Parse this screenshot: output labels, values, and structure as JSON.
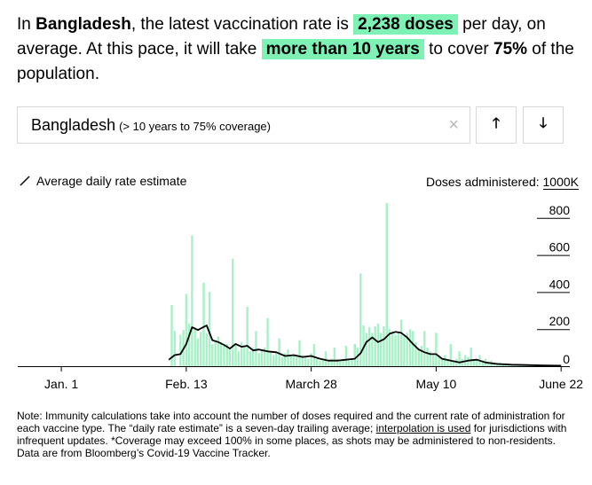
{
  "headline": {
    "p1": "In ",
    "country": "Bangladesh",
    "p2": ", the latest vaccination rate is ",
    "rate": "2,238 doses",
    "p3": " per day, on average. At this pace, it will take ",
    "duration": "more than 10 years",
    "p4": " to cover ",
    "coverage": "75%",
    "p5": " of the population."
  },
  "selector": {
    "name": "Bangladesh",
    "note": "(> 10 years to 75% coverage)",
    "clear_icon": "×",
    "up_icon": "🡑",
    "down_icon": "🡓"
  },
  "legend": {
    "label": "Average daily rate estimate"
  },
  "yaxis": {
    "label": "Doses administered:",
    "unit": "1000K"
  },
  "colors": {
    "bar": "#a8f0c7",
    "line": "#000000",
    "grid": "#000000"
  },
  "chart_data": {
    "type": "bar",
    "ylabel": "Doses administered (thousands)",
    "ylim": [
      0,
      1000
    ],
    "yticks": [
      "1000K",
      "800",
      "600",
      "400",
      "200",
      "0"
    ],
    "x_tick_labels": [
      "Jan. 1",
      "Feb. 13",
      "March 28",
      "May 10",
      "June 22"
    ],
    "x_tick_days": [
      0,
      43,
      86,
      129,
      172
    ],
    "x_range_days": [
      -15,
      175
    ],
    "bars": [
      {
        "day": 38,
        "v": 330
      },
      {
        "day": 39,
        "v": 190
      },
      {
        "day": 41,
        "v": 170
      },
      {
        "day": 42,
        "v": 195
      },
      {
        "day": 43,
        "v": 390
      },
      {
        "day": 44,
        "v": 230
      },
      {
        "day": 45,
        "v": 705
      },
      {
        "day": 46,
        "v": 210
      },
      {
        "day": 47,
        "v": 150
      },
      {
        "day": 48,
        "v": 185
      },
      {
        "day": 49,
        "v": 450
      },
      {
        "day": 50,
        "v": 180
      },
      {
        "day": 51,
        "v": 400
      },
      {
        "day": 52,
        "v": 120
      },
      {
        "day": 53,
        "v": 140
      },
      {
        "day": 54,
        "v": 160
      },
      {
        "day": 55,
        "v": 130
      },
      {
        "day": 56,
        "v": 110
      },
      {
        "day": 57,
        "v": 120
      },
      {
        "day": 58,
        "v": 100
      },
      {
        "day": 59,
        "v": 580
      },
      {
        "day": 60,
        "v": 120
      },
      {
        "day": 61,
        "v": 80
      },
      {
        "day": 62,
        "v": 130
      },
      {
        "day": 63,
        "v": 110
      },
      {
        "day": 64,
        "v": 320
      },
      {
        "day": 65,
        "v": 80
      },
      {
        "day": 66,
        "v": 100
      },
      {
        "day": 67,
        "v": 190
      },
      {
        "day": 68,
        "v": 70
      },
      {
        "day": 69,
        "v": 90
      },
      {
        "day": 70,
        "v": 100
      },
      {
        "day": 71,
        "v": 260
      },
      {
        "day": 72,
        "v": 80
      },
      {
        "day": 73,
        "v": 60
      },
      {
        "day": 74,
        "v": 70
      },
      {
        "day": 75,
        "v": 150
      },
      {
        "day": 76,
        "v": 50
      },
      {
        "day": 77,
        "v": 70
      },
      {
        "day": 78,
        "v": 90
      },
      {
        "day": 79,
        "v": 60
      },
      {
        "day": 80,
        "v": 60
      },
      {
        "day": 81,
        "v": 50
      },
      {
        "day": 82,
        "v": 140
      },
      {
        "day": 83,
        "v": 60
      },
      {
        "day": 84,
        "v": 50
      },
      {
        "day": 85,
        "v": 40
      },
      {
        "day": 86,
        "v": 70
      },
      {
        "day": 87,
        "v": 120
      },
      {
        "day": 88,
        "v": 40
      },
      {
        "day": 89,
        "v": 30
      },
      {
        "day": 90,
        "v": 40
      },
      {
        "day": 91,
        "v": 80
      },
      {
        "day": 92,
        "v": 30
      },
      {
        "day": 93,
        "v": 40
      },
      {
        "day": 94,
        "v": 100
      },
      {
        "day": 95,
        "v": 40
      },
      {
        "day": 96,
        "v": 30
      },
      {
        "day": 97,
        "v": 40
      },
      {
        "day": 98,
        "v": 110
      },
      {
        "day": 99,
        "v": 30
      },
      {
        "day": 100,
        "v": 40
      },
      {
        "day": 101,
        "v": 120
      },
      {
        "day": 102,
        "v": 100
      },
      {
        "day": 103,
        "v": 500
      },
      {
        "day": 104,
        "v": 220
      },
      {
        "day": 105,
        "v": 180
      },
      {
        "day": 106,
        "v": 210
      },
      {
        "day": 107,
        "v": 180
      },
      {
        "day": 108,
        "v": 215
      },
      {
        "day": 109,
        "v": 230
      },
      {
        "day": 110,
        "v": 180
      },
      {
        "day": 111,
        "v": 215
      },
      {
        "day": 112,
        "v": 880
      },
      {
        "day": 113,
        "v": 200
      },
      {
        "day": 114,
        "v": 190
      },
      {
        "day": 115,
        "v": 170
      },
      {
        "day": 116,
        "v": 180
      },
      {
        "day": 117,
        "v": 250
      },
      {
        "day": 118,
        "v": 160
      },
      {
        "day": 119,
        "v": 180
      },
      {
        "day": 120,
        "v": 200
      },
      {
        "day": 121,
        "v": 190
      },
      {
        "day": 122,
        "v": 130
      },
      {
        "day": 123,
        "v": 90
      },
      {
        "day": 124,
        "v": 110
      },
      {
        "day": 125,
        "v": 190
      },
      {
        "day": 126,
        "v": 100
      },
      {
        "day": 127,
        "v": 80
      },
      {
        "day": 128,
        "v": 60
      },
      {
        "day": 129,
        "v": 180
      },
      {
        "day": 130,
        "v": 60
      },
      {
        "day": 131,
        "v": 40
      },
      {
        "day": 132,
        "v": 60
      },
      {
        "day": 133,
        "v": 40
      },
      {
        "day": 134,
        "v": 120
      },
      {
        "day": 135,
        "v": 30
      },
      {
        "day": 136,
        "v": 40
      },
      {
        "day": 137,
        "v": 80
      },
      {
        "day": 138,
        "v": 40
      },
      {
        "day": 139,
        "v": 60
      },
      {
        "day": 140,
        "v": 50
      },
      {
        "day": 141,
        "v": 100
      },
      {
        "day": 142,
        "v": 30
      },
      {
        "day": 143,
        "v": 40
      },
      {
        "day": 144,
        "v": 60
      },
      {
        "day": 145,
        "v": 30
      },
      {
        "day": 146,
        "v": 40
      },
      {
        "day": 147,
        "v": 20
      },
      {
        "day": 148,
        "v": 30
      },
      {
        "day": 149,
        "v": 20
      },
      {
        "day": 150,
        "v": 20
      },
      {
        "day": 151,
        "v": 20
      },
      {
        "day": 152,
        "v": 15
      },
      {
        "day": 153,
        "v": 15
      },
      {
        "day": 154,
        "v": 12
      },
      {
        "day": 155,
        "v": 12
      },
      {
        "day": 156,
        "v": 10
      },
      {
        "day": 157,
        "v": 10
      },
      {
        "day": 158,
        "v": 8
      },
      {
        "day": 159,
        "v": 8
      },
      {
        "day": 160,
        "v": 8
      },
      {
        "day": 161,
        "v": 6
      },
      {
        "day": 162,
        "v": 6
      },
      {
        "day": 163,
        "v": 6
      },
      {
        "day": 164,
        "v": 5
      },
      {
        "day": 165,
        "v": 5
      },
      {
        "day": 166,
        "v": 5
      },
      {
        "day": 167,
        "v": 4
      },
      {
        "day": 168,
        "v": 4
      },
      {
        "day": 169,
        "v": 4
      },
      {
        "day": 170,
        "v": 3
      },
      {
        "day": 171,
        "v": 3
      },
      {
        "day": 172,
        "v": 3
      }
    ],
    "line": [
      {
        "day": 37,
        "v": 35
      },
      {
        "day": 39,
        "v": 60
      },
      {
        "day": 41,
        "v": 65
      },
      {
        "day": 43,
        "v": 120
      },
      {
        "day": 45,
        "v": 210
      },
      {
        "day": 47,
        "v": 195
      },
      {
        "day": 50,
        "v": 220
      },
      {
        "day": 52,
        "v": 140
      },
      {
        "day": 54,
        "v": 130
      },
      {
        "day": 56,
        "v": 115
      },
      {
        "day": 58,
        "v": 95
      },
      {
        "day": 60,
        "v": 120
      },
      {
        "day": 62,
        "v": 105
      },
      {
        "day": 64,
        "v": 110
      },
      {
        "day": 66,
        "v": 85
      },
      {
        "day": 68,
        "v": 90
      },
      {
        "day": 71,
        "v": 80
      },
      {
        "day": 74,
        "v": 75
      },
      {
        "day": 77,
        "v": 55
      },
      {
        "day": 80,
        "v": 60
      },
      {
        "day": 83,
        "v": 50
      },
      {
        "day": 86,
        "v": 55
      },
      {
        "day": 89,
        "v": 40
      },
      {
        "day": 92,
        "v": 30
      },
      {
        "day": 95,
        "v": 30
      },
      {
        "day": 98,
        "v": 35
      },
      {
        "day": 101,
        "v": 40
      },
      {
        "day": 103,
        "v": 70
      },
      {
        "day": 105,
        "v": 130
      },
      {
        "day": 107,
        "v": 155
      },
      {
        "day": 109,
        "v": 130
      },
      {
        "day": 111,
        "v": 145
      },
      {
        "day": 113,
        "v": 175
      },
      {
        "day": 115,
        "v": 185
      },
      {
        "day": 117,
        "v": 180
      },
      {
        "day": 119,
        "v": 155
      },
      {
        "day": 121,
        "v": 120
      },
      {
        "day": 123,
        "v": 90
      },
      {
        "day": 125,
        "v": 75
      },
      {
        "day": 127,
        "v": 65
      },
      {
        "day": 129,
        "v": 65
      },
      {
        "day": 131,
        "v": 40
      },
      {
        "day": 134,
        "v": 30
      },
      {
        "day": 137,
        "v": 20
      },
      {
        "day": 140,
        "v": 30
      },
      {
        "day": 143,
        "v": 35
      },
      {
        "day": 146,
        "v": 20
      },
      {
        "day": 150,
        "v": 12
      },
      {
        "day": 155,
        "v": 8
      },
      {
        "day": 160,
        "v": 6
      },
      {
        "day": 166,
        "v": 4
      },
      {
        "day": 172,
        "v": 3
      }
    ]
  },
  "note": {
    "t1": "Note: Immunity calculations take into account the number of doses required and the current rate of administration for each vaccine type. The “daily rate estimate” is a seven-day trailing average; ",
    "link": "interpolation is used",
    "t2": " for jurisdictions with infrequent updates. *Coverage may exceed 100% in some places, as shots may be administered to non-residents. Data are from Bloomberg’s Covid-19 Vaccine Tracker."
  }
}
